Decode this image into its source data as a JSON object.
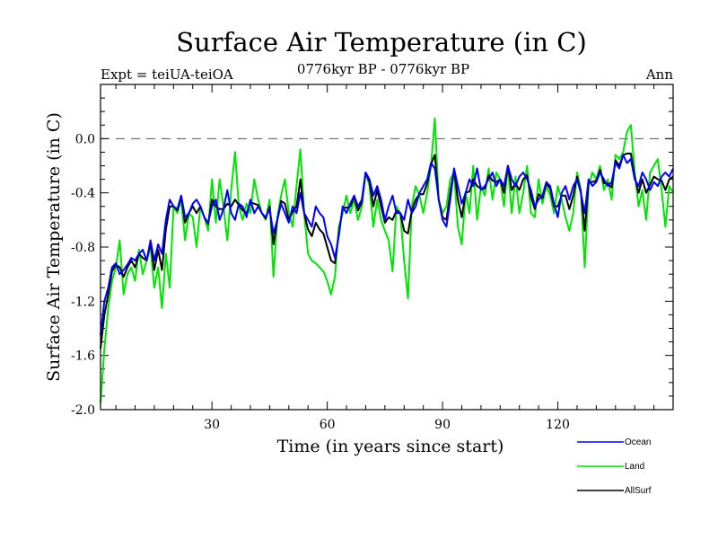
{
  "chart_data": {
    "type": "line",
    "title": "Surface Air Temperature (in C)",
    "subtitle_left": "Expt = teiUA-teiOA",
    "subtitle_center": "0776kyr BP - 0776kyr BP",
    "subtitle_right": "Ann",
    "xlabel": "Time (in years since start)",
    "ylabel": "Surface Air Temperature (in C)",
    "xlim": [
      1,
      150
    ],
    "ylim": [
      -2.0,
      0.4
    ],
    "xticks": [
      30,
      60,
      90,
      120
    ],
    "xtick_labels": [
      "30",
      "60",
      "90",
      "120"
    ],
    "yticks": [
      -2.0,
      -1.6,
      -1.2,
      -0.8,
      -0.4,
      0.0
    ],
    "ytick_labels": [
      "-2.0",
      "-1.6",
      "-1.2",
      "-0.8",
      "-0.4",
      "0.0"
    ],
    "reference_line": 0.0,
    "legend_position": "bottom-right",
    "colors": {
      "Ocean": "#0000ff",
      "Land": "#00e600",
      "AllSurf": "#000000"
    },
    "series": [
      {
        "name": "Ocean",
        "values": [
          -1.45,
          -1.2,
          -1.1,
          -0.95,
          -0.92,
          -1.0,
          -0.97,
          -0.93,
          -0.88,
          -0.9,
          -0.85,
          -0.82,
          -0.9,
          -0.75,
          -0.9,
          -0.78,
          -0.85,
          -0.6,
          -0.45,
          -0.5,
          -0.52,
          -0.42,
          -0.58,
          -0.55,
          -0.48,
          -0.45,
          -0.5,
          -0.58,
          -0.62,
          -0.5,
          -0.45,
          -0.6,
          -0.52,
          -0.38,
          -0.55,
          -0.6,
          -0.48,
          -0.5,
          -0.58,
          -0.45,
          -0.55,
          -0.5,
          -0.55,
          -0.58,
          -0.52,
          -0.7,
          -0.6,
          -0.48,
          -0.55,
          -0.62,
          -0.5,
          -0.55,
          -0.4,
          -0.55,
          -0.6,
          -0.65,
          -0.5,
          -0.55,
          -0.58,
          -0.72,
          -0.78,
          -0.88,
          -0.72,
          -0.5,
          -0.55,
          -0.48,
          -0.42,
          -0.5,
          -0.45,
          -0.25,
          -0.3,
          -0.42,
          -0.35,
          -0.45,
          -0.6,
          -0.5,
          -0.42,
          -0.55,
          -0.55,
          -0.6,
          -0.45,
          -0.55,
          -0.5,
          -0.4,
          -0.35,
          -0.3,
          -0.18,
          -0.22,
          -0.45,
          -0.6,
          -0.65,
          -0.45,
          -0.22,
          -0.35,
          -0.48,
          -0.4,
          -0.3,
          -0.35,
          -0.22,
          -0.38,
          -0.35,
          -0.3,
          -0.25,
          -0.35,
          -0.3,
          -0.35,
          -0.2,
          -0.3,
          -0.35,
          -0.28,
          -0.25,
          -0.3,
          -0.38,
          -0.5,
          -0.45,
          -0.42,
          -0.32,
          -0.35,
          -0.48,
          -0.58,
          -0.4,
          -0.35,
          -0.45,
          -0.35,
          -0.3,
          -0.4,
          -0.55,
          -0.3,
          -0.35,
          -0.32,
          -0.25,
          -0.3,
          -0.35,
          -0.32,
          -0.18,
          -0.22,
          -0.12,
          -0.18,
          -0.15,
          -0.3,
          -0.35,
          -0.25,
          -0.3,
          -0.38,
          -0.32,
          -0.35,
          -0.28,
          -0.25,
          -0.28,
          -0.22
        ]
      },
      {
        "name": "Land",
        "values": [
          -1.95,
          -1.55,
          -1.25,
          -1.05,
          -0.95,
          -0.75,
          -1.15,
          -1.0,
          -0.95,
          -1.05,
          -0.82,
          -1.0,
          -0.9,
          -0.8,
          -1.1,
          -0.95,
          -1.25,
          -0.85,
          -1.1,
          -0.5,
          -0.55,
          -0.45,
          -0.75,
          -0.55,
          -0.58,
          -0.8,
          -0.5,
          -0.58,
          -0.68,
          -0.3,
          -0.62,
          -0.3,
          -0.5,
          -0.75,
          -0.38,
          -0.1,
          -0.5,
          -0.6,
          -0.48,
          -0.55,
          -0.3,
          -0.45,
          -0.55,
          -0.6,
          -0.45,
          -1.02,
          -0.58,
          -0.42,
          -0.3,
          -0.55,
          -0.65,
          -0.35,
          -0.08,
          -0.55,
          -0.85,
          -0.9,
          -0.92,
          -0.95,
          -0.98,
          -1.05,
          -1.15,
          -1.02,
          -0.65,
          -0.55,
          -0.42,
          -0.55,
          -0.45,
          -0.6,
          -0.5,
          -0.25,
          -0.35,
          -0.65,
          -0.45,
          -0.6,
          -0.68,
          -0.75,
          -0.98,
          -0.5,
          -0.55,
          -0.9,
          -1.18,
          -0.5,
          -0.35,
          -0.42,
          -0.55,
          -0.4,
          -0.2,
          0.15,
          -0.45,
          -0.55,
          -0.5,
          -0.3,
          -0.25,
          -0.65,
          -0.78,
          -0.4,
          -0.55,
          -0.2,
          -0.6,
          -0.35,
          -0.42,
          -0.22,
          -0.45,
          -0.25,
          -0.3,
          -0.5,
          -0.2,
          -0.55,
          -0.28,
          -0.55,
          -0.4,
          -0.2,
          -0.55,
          -0.58,
          -0.3,
          -0.48,
          -0.35,
          -0.42,
          -0.55,
          -0.35,
          -0.45,
          -0.58,
          -0.68,
          -0.55,
          -0.25,
          -0.38,
          -0.95,
          -0.35,
          -0.25,
          -0.3,
          -0.2,
          -0.38,
          -0.3,
          -0.45,
          -0.12,
          -0.15,
          -0.1,
          0.05,
          0.1,
          -0.25,
          -0.5,
          -0.38,
          -0.6,
          -0.25,
          -0.2,
          -0.15,
          -0.38,
          -0.65,
          -0.35,
          -0.4
        ]
      },
      {
        "name": "AllSurf",
        "values": [
          -1.55,
          -1.3,
          -1.15,
          -0.98,
          -0.93,
          -0.95,
          -1.02,
          -0.95,
          -0.9,
          -0.95,
          -0.85,
          -0.88,
          -0.9,
          -0.77,
          -0.97,
          -0.82,
          -0.97,
          -0.67,
          -0.5,
          -0.5,
          -0.53,
          -0.43,
          -0.62,
          -0.55,
          -0.5,
          -0.55,
          -0.5,
          -0.58,
          -0.63,
          -0.45,
          -0.5,
          -0.52,
          -0.52,
          -0.48,
          -0.5,
          -0.45,
          -0.49,
          -0.53,
          -0.55,
          -0.47,
          -0.48,
          -0.49,
          -0.55,
          -0.59,
          -0.5,
          -0.78,
          -0.6,
          -0.46,
          -0.48,
          -0.6,
          -0.54,
          -0.5,
          -0.3,
          -0.55,
          -0.67,
          -0.72,
          -0.62,
          -0.67,
          -0.7,
          -0.8,
          -0.9,
          -0.92,
          -0.7,
          -0.51,
          -0.51,
          -0.5,
          -0.43,
          -0.53,
          -0.47,
          -0.25,
          -0.32,
          -0.5,
          -0.38,
          -0.5,
          -0.62,
          -0.58,
          -0.6,
          -0.53,
          -0.55,
          -0.68,
          -0.7,
          -0.53,
          -0.45,
          -0.41,
          -0.41,
          -0.33,
          -0.19,
          -0.12,
          -0.45,
          -0.58,
          -0.6,
          -0.4,
          -0.23,
          -0.45,
          -0.58,
          -0.4,
          -0.39,
          -0.3,
          -0.35,
          -0.37,
          -0.37,
          -0.27,
          -0.31,
          -0.32,
          -0.3,
          -0.4,
          -0.2,
          -0.38,
          -0.33,
          -0.38,
          -0.3,
          -0.27,
          -0.43,
          -0.52,
          -0.41,
          -0.44,
          -0.33,
          -0.37,
          -0.5,
          -0.5,
          -0.42,
          -0.42,
          -0.52,
          -0.42,
          -0.28,
          -0.39,
          -0.68,
          -0.32,
          -0.32,
          -0.31,
          -0.23,
          -0.33,
          -0.33,
          -0.36,
          -0.16,
          -0.2,
          -0.12,
          -0.11,
          -0.11,
          -0.28,
          -0.4,
          -0.3,
          -0.4,
          -0.34,
          -0.28,
          -0.3,
          -0.31,
          -0.38,
          -0.3,
          -0.28
        ]
      }
    ]
  }
}
